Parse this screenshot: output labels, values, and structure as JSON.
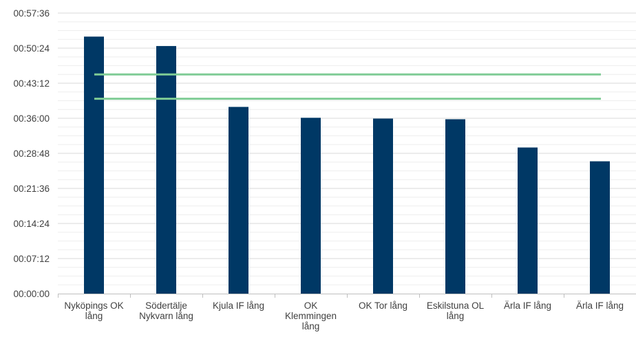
{
  "chart_data": {
    "type": "bar",
    "title": "",
    "xlabel": "",
    "ylabel": "",
    "ylim_seconds": [
      0,
      3456
    ],
    "y_tick_labels": [
      "00:00:00",
      "00:07:12",
      "00:14:24",
      "00:21:36",
      "00:28:48",
      "00:36:00",
      "00:43:12",
      "00:50:24",
      "00:57:36"
    ],
    "y_tick_values_seconds": [
      0,
      432,
      864,
      1296,
      1728,
      2160,
      2592,
      3024,
      3456
    ],
    "grid": "horizontal major and minor",
    "categories": [
      [
        "Nyköpings OK",
        "lång"
      ],
      [
        "Södertälje",
        "Nykvarn lång"
      ],
      [
        "Kjula IF lång"
      ],
      [
        "OK",
        "Klemmingen",
        "lång"
      ],
      [
        "OK Tor lång"
      ],
      [
        "Eskilstuna OL",
        "lång"
      ],
      [
        "Ärla IF lång"
      ],
      [
        "Ärla IF lång"
      ]
    ],
    "values_seconds": [
      3166,
      3050,
      2300,
      2166,
      2156,
      2148,
      1800,
      1630
    ],
    "reference_lines_seconds": [
      2700,
      2400
    ],
    "colors": {
      "bar": "#003865",
      "reference_line": "#7FCC95",
      "grid": "#d9d9d9",
      "axis": "#bfbfbf",
      "text": "#404040"
    }
  }
}
